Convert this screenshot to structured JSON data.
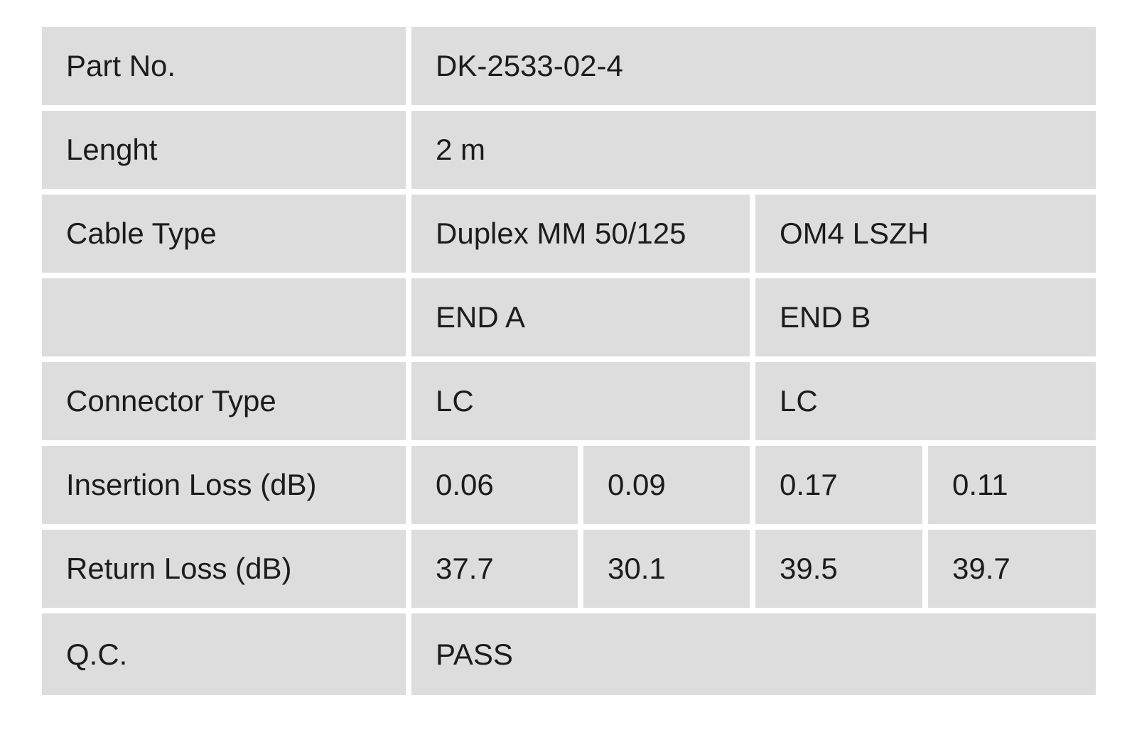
{
  "table": {
    "rows": [
      [
        "Part No.",
        "DK-2533-02-4"
      ],
      [
        "Lenght",
        "2 m"
      ],
      [
        "Cable Type",
        "Duplex MM 50/125",
        "OM4 LSZH"
      ],
      [
        null,
        "END A",
        "END B"
      ],
      [
        "Connector Type",
        "LC",
        "LC"
      ],
      [
        "Insertion Loss (dB)",
        "0.06",
        "0.09",
        "0.17",
        "0.11"
      ],
      [
        "Return Loss (dB)",
        "37.7",
        "30.1",
        "39.5",
        "39.7"
      ],
      [
        "Q.C.",
        "PASS"
      ]
    ]
  }
}
